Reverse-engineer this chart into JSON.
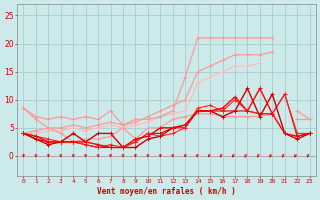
{
  "x": [
    0,
    1,
    2,
    3,
    4,
    5,
    6,
    7,
    8,
    9,
    10,
    11,
    12,
    13,
    14,
    15,
    16,
    17,
    18,
    19,
    20,
    21,
    22,
    23
  ],
  "bg_color": "#cceaea",
  "grid_color": "#aacccc",
  "line_pink1": {
    "y": [
      8.5,
      7,
      6.5,
      7,
      6.5,
      7,
      6.5,
      8,
      5.5,
      6.5,
      6.5,
      7,
      8,
      14,
      21,
      21,
      21,
      21,
      21,
      21,
      21,
      null,
      8,
      6.5
    ],
    "color": "#ff9999",
    "lw": 0.9
  },
  "line_pink2": {
    "y": [
      4,
      4.5,
      5,
      5,
      5.5,
      5,
      5.5,
      6,
      5.5,
      6,
      7,
      8,
      9,
      10,
      15,
      16,
      17,
      18,
      18,
      18,
      18.5,
      null,
      null,
      null
    ],
    "color": "#ff9999",
    "lw": 0.9
  },
  "line_pink3": {
    "y": [
      4,
      4,
      4.5,
      4.5,
      5,
      4.5,
      5,
      5.5,
      5,
      5.5,
      6,
      7,
      7.5,
      8,
      13,
      14,
      15,
      16,
      16,
      16.5,
      null,
      null,
      null,
      null
    ],
    "color": "#ffbbbb",
    "lw": 0.9
  },
  "line_med1": {
    "y": [
      8.5,
      6.5,
      5,
      4,
      2.5,
      3,
      3,
      3.5,
      5,
      3,
      5,
      5,
      6.5,
      7,
      7.5,
      7.5,
      7,
      7,
      7,
      7,
      7.5,
      null,
      6.5,
      6.5
    ],
    "color": "#ff9999",
    "lw": 0.9
  },
  "line_red1": {
    "y": [
      4,
      3.5,
      2.5,
      2.5,
      2.5,
      2.5,
      2,
      1.5,
      1.5,
      3,
      3.5,
      5,
      5,
      5.5,
      8,
      8,
      8.5,
      10.5,
      8,
      12,
      7.5,
      4,
      3.5,
      4
    ],
    "color": "#ff0000",
    "lw": 1.0
  },
  "line_red2": {
    "y": [
      4,
      3,
      2,
      2.5,
      4,
      2.5,
      4,
      4,
      1.5,
      1.5,
      3,
      3.5,
      5,
      5.5,
      8,
      8,
      7,
      8,
      12,
      7,
      11,
      4,
      3,
      4
    ],
    "color": "#cc0000",
    "lw": 1.0
  },
  "line_red3": {
    "y": [
      4,
      3.5,
      3,
      2.5,
      2.5,
      2,
      1.5,
      2,
      1.5,
      2.5,
      4,
      3.5,
      4,
      5,
      8.5,
      9,
      8,
      10,
      8,
      7.5,
      7.5,
      11,
      4,
      4
    ],
    "color": "#ff2222",
    "lw": 0.8
  },
  "line_red4": {
    "y": [
      4,
      3,
      2.5,
      2.5,
      2.5,
      2,
      1.5,
      1.5,
      1.5,
      2.5,
      4,
      4,
      5,
      5,
      8,
      8,
      8,
      8,
      8,
      7.5,
      7.5,
      11,
      3.5,
      4
    ],
    "color": "#dd0000",
    "lw": 0.8
  },
  "xlabel": "Vent moyen/en rafales ( km/h )",
  "xlabel_color": "#cc0000",
  "arrow_color": "#cc0000",
  "ylabel_ticks": [
    0,
    5,
    10,
    15,
    20,
    25
  ],
  "ylim": [
    -3.5,
    27
  ],
  "xlim": [
    -0.5,
    23.5
  ],
  "tick_color": "#cc0000",
  "arrow_down_until": 13,
  "figsize": [
    3.2,
    2.0
  ],
  "dpi": 100
}
